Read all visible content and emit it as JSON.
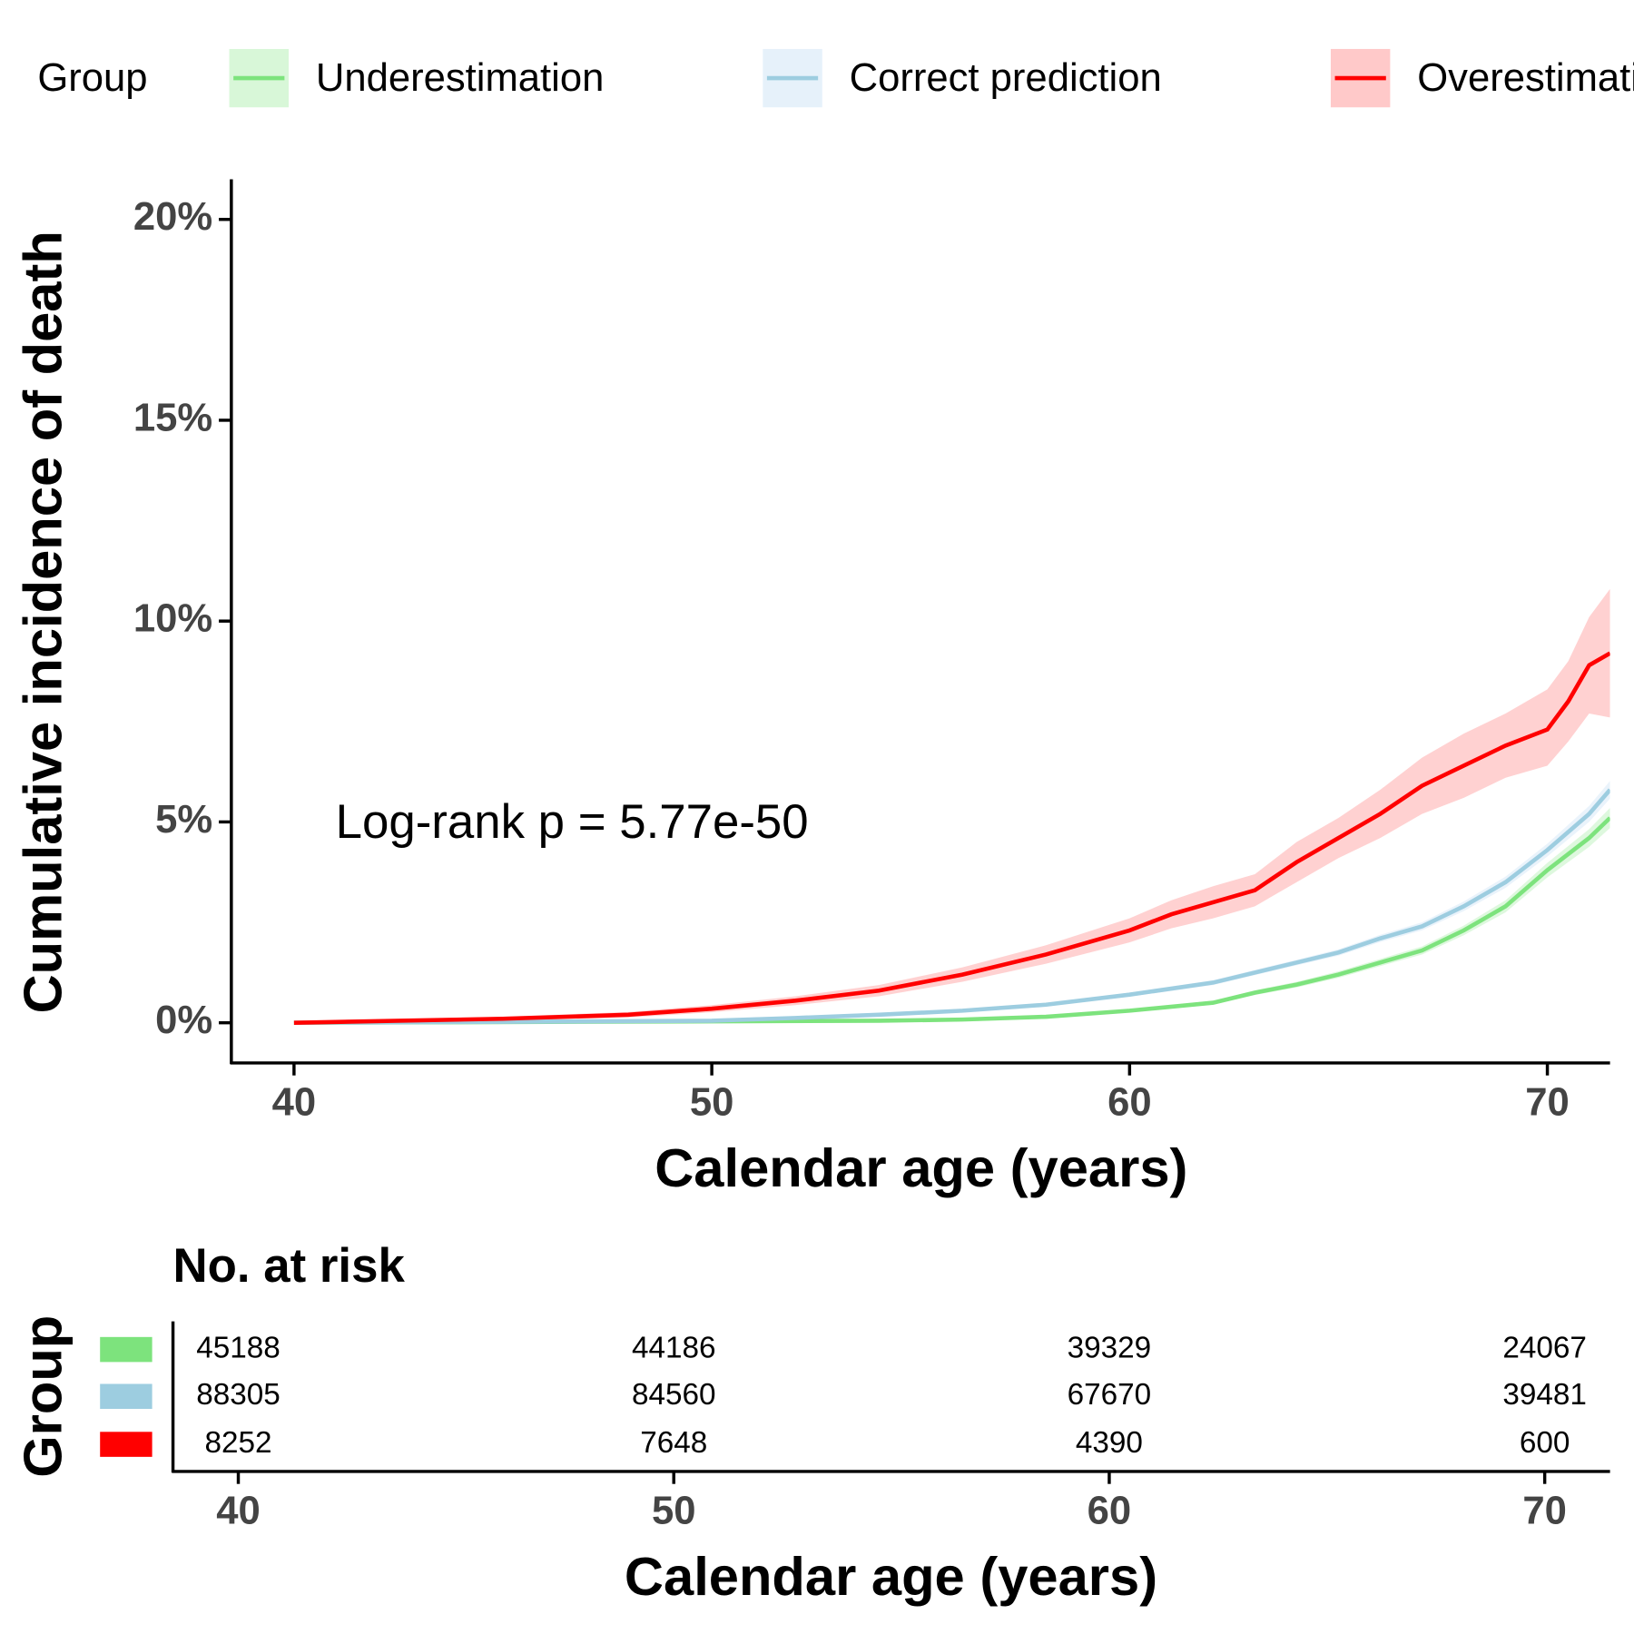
{
  "chart_data": {
    "type": "line",
    "legend_title": "Group",
    "legend_position": "top",
    "x_label": "Calendar age (years)",
    "y_label": "Cumulative incidence of death",
    "annotation": "Log-rank p = 5.77e-50",
    "xlim": [
      38.5,
      71.5
    ],
    "ylim": [
      -1,
      21
    ],
    "xticks": [
      40,
      50,
      60,
      70
    ],
    "yticks": [
      {
        "value": 0,
        "label": "0%"
      },
      {
        "value": 5,
        "label": "5%"
      },
      {
        "value": 10,
        "label": "10%"
      },
      {
        "value": 15,
        "label": "15%"
      },
      {
        "value": 20,
        "label": "20%"
      }
    ],
    "series": [
      {
        "name": "Underestimation",
        "color": "#7de37d",
        "band_color": "#d8f7d8",
        "x": [
          40,
          54,
          56,
          58,
          60,
          62,
          63,
          64,
          65,
          66,
          67,
          68,
          69,
          70,
          71,
          71.5
        ],
        "values": [
          0,
          0.05,
          0.08,
          0.15,
          0.3,
          0.5,
          0.75,
          0.95,
          1.2,
          1.5,
          1.8,
          2.3,
          2.9,
          3.8,
          4.6,
          5.1
        ],
        "lower": [
          0,
          0.04,
          0.06,
          0.12,
          0.26,
          0.45,
          0.69,
          0.88,
          1.12,
          1.41,
          1.7,
          2.18,
          2.75,
          3.62,
          4.38,
          4.85
        ],
        "upper": [
          0,
          0.06,
          0.1,
          0.18,
          0.34,
          0.55,
          0.81,
          1.02,
          1.28,
          1.59,
          1.9,
          2.42,
          3.05,
          3.98,
          4.82,
          5.35
        ]
      },
      {
        "name": "Correct prediction",
        "color": "#9dcde0",
        "band_color": "#e6f1fa",
        "x": [
          40,
          50,
          52,
          54,
          56,
          58,
          60,
          62,
          64,
          65,
          66,
          67,
          68,
          69,
          70,
          71,
          71.5
        ],
        "values": [
          0,
          0.05,
          0.12,
          0.2,
          0.3,
          0.45,
          0.7,
          1.0,
          1.5,
          1.75,
          2.1,
          2.4,
          2.9,
          3.5,
          4.3,
          5.2,
          5.8
        ],
        "lower": [
          0,
          0.04,
          0.1,
          0.18,
          0.27,
          0.41,
          0.65,
          0.94,
          1.43,
          1.67,
          2.01,
          2.3,
          2.78,
          3.36,
          4.14,
          5.0,
          5.58
        ],
        "upper": [
          0,
          0.06,
          0.14,
          0.22,
          0.33,
          0.49,
          0.75,
          1.06,
          1.57,
          1.83,
          2.19,
          2.5,
          3.02,
          3.64,
          4.46,
          5.4,
          6.02
        ]
      },
      {
        "name": "Overestimation",
        "color": "#ff0000",
        "band_color": "#ffc9c9",
        "x": [
          40,
          45,
          48,
          50,
          52,
          54,
          56,
          58,
          60,
          61,
          62,
          63,
          64,
          65,
          66,
          67,
          68,
          69,
          70,
          70.5,
          71,
          71.5
        ],
        "values": [
          0,
          0.1,
          0.2,
          0.35,
          0.55,
          0.8,
          1.2,
          1.7,
          2.3,
          2.7,
          3.0,
          3.3,
          4.0,
          4.6,
          5.2,
          5.9,
          6.4,
          6.9,
          7.3,
          8.0,
          8.9,
          9.2
        ],
        "lower": [
          0,
          0.05,
          0.13,
          0.26,
          0.44,
          0.66,
          1.02,
          1.47,
          2.0,
          2.35,
          2.6,
          2.9,
          3.5,
          4.1,
          4.6,
          5.2,
          5.6,
          6.1,
          6.4,
          7.0,
          7.7,
          7.6
        ],
        "upper": [
          0,
          0.15,
          0.27,
          0.44,
          0.66,
          0.94,
          1.38,
          1.93,
          2.6,
          3.05,
          3.4,
          3.7,
          4.5,
          5.1,
          5.8,
          6.6,
          7.2,
          7.7,
          8.3,
          9.0,
          10.1,
          10.8
        ]
      }
    ],
    "risk_table": {
      "title": "No. at risk",
      "y_label": "Group",
      "x": [
        40,
        50,
        60,
        70
      ],
      "counts": [
        [
          45188,
          44186,
          39329,
          24067
        ],
        [
          88305,
          84560,
          67670,
          39481
        ],
        [
          8252,
          7648,
          4390,
          600
        ]
      ]
    }
  }
}
